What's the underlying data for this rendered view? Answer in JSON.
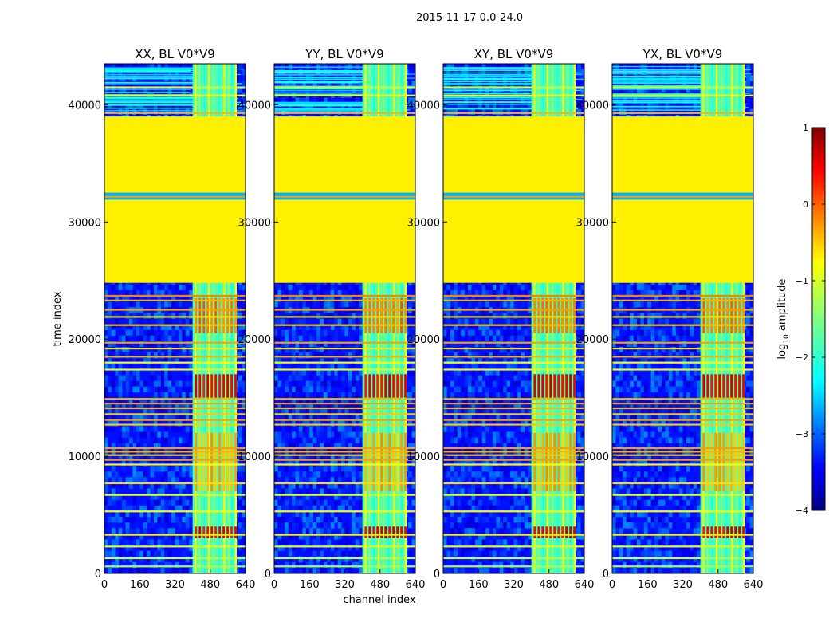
{
  "figure": {
    "suptitle": "2015-11-17 0.0-24.0",
    "xlabel": "channel index",
    "ylabel": "time index"
  },
  "colorbar": {
    "label_prefix": "log",
    "label_sub": "10",
    "label_suffix": " amplitude",
    "vmin": -4,
    "vmax": 1,
    "ticks": [
      1,
      0,
      -1,
      -2,
      -3,
      -4
    ],
    "tick_labels": [
      "1",
      "0",
      "−1",
      "−2",
      "−3",
      "−4"
    ],
    "colormap": "jet"
  },
  "chart_data": [
    {
      "type": "heatmap",
      "title": "XX, BL V0*V9",
      "xlim": [
        0,
        640
      ],
      "ylim": [
        0,
        43500
      ],
      "xticks": [
        0,
        160,
        320,
        480,
        640
      ],
      "xtick_labels": [
        "0",
        "160",
        "320",
        "480",
        "640"
      ],
      "yticks": [
        0,
        10000,
        20000,
        30000,
        40000
      ],
      "ytick_labels": [
        "0",
        "10000",
        "20000",
        "30000",
        "40000"
      ],
      "flagged_time_range": [
        24800,
        39000
      ],
      "flagged_log10_amplitude": -0.8,
      "rfi_channel_range": [
        400,
        600
      ]
    },
    {
      "type": "heatmap",
      "title": "YY, BL V0*V9",
      "xlim": [
        0,
        640
      ],
      "ylim": [
        0,
        43500
      ],
      "xticks": [
        0,
        160,
        320,
        480,
        640
      ],
      "xtick_labels": [
        "0",
        "160",
        "320",
        "480",
        "640"
      ],
      "yticks": [
        0,
        10000,
        20000,
        30000,
        40000
      ],
      "ytick_labels": [
        "0",
        "10000",
        "20000",
        "30000",
        "40000"
      ],
      "flagged_time_range": [
        24800,
        39000
      ],
      "flagged_log10_amplitude": -0.8,
      "rfi_channel_range": [
        400,
        600
      ]
    },
    {
      "type": "heatmap",
      "title": "XY, BL V0*V9",
      "xlim": [
        0,
        640
      ],
      "ylim": [
        0,
        43500
      ],
      "xticks": [
        0,
        160,
        320,
        480,
        640
      ],
      "xtick_labels": [
        "0",
        "160",
        "320",
        "480",
        "640"
      ],
      "yticks": [
        0,
        10000,
        20000,
        30000,
        40000
      ],
      "ytick_labels": [
        "0",
        "10000",
        "20000",
        "30000",
        "40000"
      ],
      "flagged_time_range": [
        24800,
        39000
      ],
      "flagged_log10_amplitude": -0.8,
      "rfi_channel_range": [
        400,
        600
      ]
    },
    {
      "type": "heatmap",
      "title": "YX, BL V0*V9",
      "xlim": [
        0,
        640
      ],
      "ylim": [
        0,
        43500
      ],
      "xticks": [
        0,
        160,
        320,
        480,
        640
      ],
      "xtick_labels": [
        "0",
        "160",
        "320",
        "480",
        "640"
      ],
      "yticks": [
        0,
        10000,
        20000,
        30000,
        40000
      ],
      "ytick_labels": [
        "0",
        "10000",
        "20000",
        "30000",
        "40000"
      ],
      "flagged_time_range": [
        24800,
        39000
      ],
      "flagged_log10_amplitude": -0.8,
      "rfi_channel_range": [
        400,
        600
      ]
    }
  ]
}
